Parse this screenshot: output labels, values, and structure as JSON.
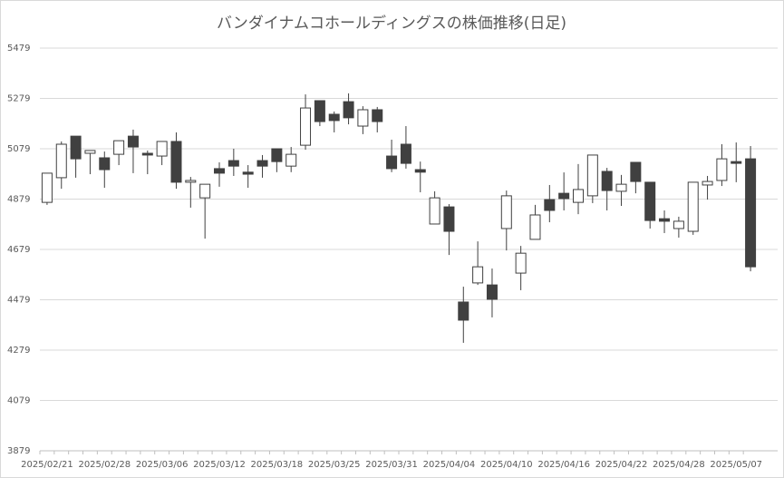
{
  "chart_data": {
    "type": "candlestick",
    "title": "バンダイナムコホールディングスの株価推移(日足)",
    "categories": [
      "2025/02/21",
      null,
      null,
      null,
      "2025/02/28",
      null,
      null,
      null,
      "2025/03/06",
      null,
      null,
      null,
      "2025/03/12",
      null,
      null,
      null,
      "2025/03/18",
      null,
      null,
      null,
      "2025/03/25",
      null,
      null,
      null,
      "2025/03/31",
      null,
      null,
      null,
      "2025/04/04",
      null,
      null,
      null,
      "2025/04/10",
      null,
      null,
      null,
      "2025/04/16",
      null,
      null,
      null,
      "2025/04/22",
      null,
      null,
      null,
      "2025/04/28",
      null,
      null,
      null,
      "2025/05/07",
      null
    ],
    "open": [
      4866,
      4964,
      5129,
      5061,
      5043,
      5057,
      5129,
      5061,
      5050,
      5108,
      4946,
      4884,
      5000,
      5032,
      4986,
      5032,
      5079,
      5010,
      5093,
      5270,
      5216,
      5266,
      5169,
      5234,
      5050,
      5097,
      4996,
      4780,
      4848,
      4470,
      4546,
      4538,
      4762,
      4585,
      4719,
      4877,
      4902,
      4866,
      4892,
      4989,
      4910,
      5025,
      4946,
      4801,
      4762,
      4751,
      4935,
      4953,
      5028,
      5039
    ],
    "high": [
      4982,
      5108,
      5129,
      5072,
      5068,
      5111,
      5155,
      5072,
      5108,
      5144,
      4967,
      4938,
      5025,
      5079,
      5014,
      5054,
      5079,
      5086,
      5295,
      5270,
      5227,
      5299,
      5248,
      5245,
      5115,
      5169,
      5028,
      4910,
      4859,
      4531,
      4711,
      4603,
      4913,
      4693,
      4856,
      4935,
      4985,
      5018,
      5054,
      5003,
      4975,
      5025,
      4946,
      4834,
      4809,
      4946,
      4971,
      5097,
      5104,
      5090
    ],
    "low": [
      4856,
      4920,
      4964,
      4978,
      4924,
      5014,
      4982,
      4978,
      5014,
      4920,
      4845,
      4722,
      4928,
      4971,
      4924,
      4964,
      4986,
      4986,
      5075,
      5169,
      5144,
      5176,
      5137,
      5144,
      4986,
      5000,
      4906,
      4780,
      4657,
      4308,
      4538,
      4409,
      4675,
      4517,
      4719,
      4787,
      4834,
      4819,
      4863,
      4834,
      4852,
      4902,
      4762,
      4744,
      4726,
      4737,
      4877,
      4931,
      4946,
      4592
    ],
    "close": [
      4982,
      5097,
      5039,
      5072,
      4996,
      5111,
      5086,
      5054,
      5108,
      4946,
      4953,
      4938,
      4982,
      5010,
      4978,
      5010,
      5028,
      5057,
      5241,
      5187,
      5191,
      5202,
      5234,
      5187,
      5000,
      5021,
      4986,
      4884,
      4751,
      4398,
      4610,
      4481,
      4892,
      4664,
      4816,
      4834,
      4881,
      4917,
      5054,
      4913,
      4938,
      4949,
      4794,
      4791,
      4791,
      4946,
      4949,
      5039,
      5021,
      4610
    ],
    "up_color": "#ffffff",
    "down_color": "#404040",
    "edge_color": "#404040",
    "ylim": [
      3879,
      5479
    ],
    "yticks": [
      3879,
      4079,
      4279,
      4479,
      4679,
      4879,
      5079,
      5279,
      5479
    ],
    "grid": true
  }
}
